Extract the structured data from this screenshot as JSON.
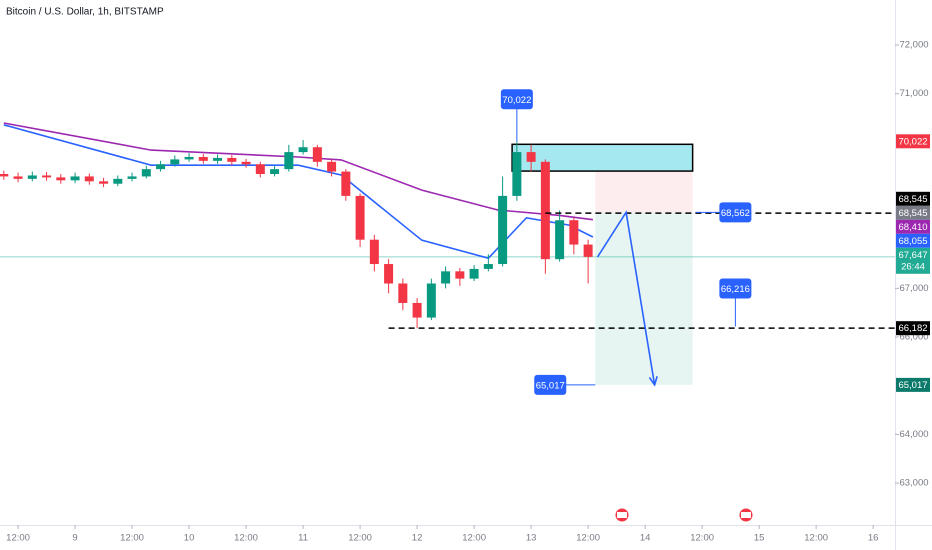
{
  "chart_data": {
    "type": "candlestick",
    "title": "Bitcoin / U.S. Dollar, 1h, BITSTAMP",
    "up_color": "#089981",
    "down_color": "#f23645",
    "xlim": [
      -3.8,
      184.6
    ],
    "ylim": [
      62138,
      72925
    ],
    "xticks": [
      {
        "value": 0,
        "label": "12:00"
      },
      {
        "value": 12,
        "label": "9"
      },
      {
        "value": 24,
        "label": "12:00"
      },
      {
        "value": 36,
        "label": "10"
      },
      {
        "value": 48,
        "label": "12:00"
      },
      {
        "value": 60,
        "label": "11"
      },
      {
        "value": 72,
        "label": "12:00"
      },
      {
        "value": 84,
        "label": "12"
      },
      {
        "value": 96,
        "label": "12:00"
      },
      {
        "value": 108,
        "label": "13"
      },
      {
        "value": 120,
        "label": "12:00"
      },
      {
        "value": 132,
        "label": "14"
      },
      {
        "value": 144,
        "label": "12:00"
      },
      {
        "value": 156,
        "label": "15"
      },
      {
        "value": 168,
        "label": "12:00"
      },
      {
        "value": 180,
        "label": "16"
      }
    ],
    "yticks": [
      {
        "value": 72000,
        "label": "72,000"
      },
      {
        "value": 71000,
        "label": "71,000"
      },
      {
        "value": 67000,
        "label": "67,000"
      },
      {
        "value": 66000,
        "label": "66,000"
      },
      {
        "value": 64000,
        "label": "64,000"
      },
      {
        "value": 63000,
        "label": "63,000"
      }
    ],
    "x": [
      -3,
      0,
      3,
      6,
      9,
      12,
      15,
      18,
      21,
      24,
      27,
      30,
      33,
      36,
      39,
      42,
      45,
      48,
      51,
      54,
      57,
      60,
      63,
      66,
      69,
      72,
      75,
      78,
      81,
      84,
      87,
      90,
      93,
      96,
      99,
      102,
      105,
      108,
      111,
      114,
      117,
      120
    ],
    "open": [
      69350,
      69300,
      69250,
      69320,
      69280,
      69220,
      69300,
      69200,
      69150,
      69250,
      69300,
      69450,
      69550,
      69650,
      69700,
      69620,
      69680,
      69600,
      69550,
      69350,
      69450,
      69800,
      69900,
      69600,
      69400,
      68900,
      68000,
      67500,
      67100,
      66700,
      66400,
      67100,
      67350,
      67200,
      67400,
      67500,
      68900,
      69800,
      69600,
      67600,
      68400,
      67900
    ],
    "high": [
      69420,
      69380,
      69400,
      69390,
      69350,
      69380,
      69360,
      69270,
      69320,
      69380,
      69520,
      69620,
      69730,
      69780,
      69760,
      69750,
      69740,
      69660,
      69600,
      69520,
      69950,
      70050,
      69950,
      69650,
      69450,
      68950,
      68100,
      67600,
      67200,
      66800,
      67200,
      67450,
      67420,
      67480,
      67700,
      69300,
      70022,
      69950,
      69650,
      68600,
      68450,
      68000
    ],
    "low": [
      69230,
      69180,
      69200,
      69210,
      69150,
      69160,
      69130,
      69080,
      69100,
      69200,
      69260,
      69400,
      69500,
      69600,
      69560,
      69560,
      69530,
      69480,
      69280,
      69300,
      69400,
      69750,
      69500,
      69300,
      68800,
      67850,
      67350,
      66900,
      66550,
      66182,
      66350,
      67000,
      67050,
      67150,
      67350,
      67450,
      68800,
      69400,
      67300,
      67550,
      67700,
      67100
    ],
    "close": [
      69300,
      69250,
      69320,
      69280,
      69220,
      69300,
      69200,
      69150,
      69250,
      69300,
      69450,
      69550,
      69650,
      69700,
      69620,
      69680,
      69600,
      69550,
      69350,
      69450,
      69800,
      69900,
      69600,
      69400,
      68900,
      68000,
      67500,
      67100,
      66700,
      66400,
      67100,
      67350,
      67200,
      67400,
      67500,
      68900,
      69800,
      69600,
      67600,
      68400,
      67900,
      67647
    ],
    "lines": [
      {
        "color": "#9c27b0",
        "x": [
          -3,
          28,
          59,
          68,
          85,
          101,
          114,
          121
        ],
        "values": [
          70397,
          69840,
          69700,
          69640,
          69020,
          68610,
          68500,
          68410
        ]
      },
      {
        "color": "#2962ff",
        "x": [
          -3,
          28,
          59,
          68,
          85,
          99,
          107,
          116,
          121
        ],
        "values": [
          70360,
          69530,
          69530,
          69330,
          67990,
          67620,
          68450,
          68300,
          68055
        ]
      }
    ],
    "current_price": {
      "value": 67647,
      "color": "#22ab94"
    },
    "zone": {
      "x": [
        104,
        142
      ],
      "values": [
        69410,
        69960
      ]
    },
    "position": {
      "x": [
        121.5,
        142
      ],
      "entry": 68562,
      "stop": 69410,
      "target": 65017
    },
    "projection": {
      "x": [
        122,
        128,
        134
      ],
      "values": [
        67647,
        68562,
        65017
      ]
    },
    "dashed_lines": [
      {
        "x": [
          111,
          184.6
        ],
        "value": 68545
      },
      {
        "x": [
          78,
          184.6
        ],
        "value": 66182
      }
    ],
    "callouts": [
      {
        "x": 105,
        "value": 70022,
        "label": "70,022"
      },
      {
        "x": 151,
        "value": 68562,
        "label": "68,562"
      },
      {
        "x": 151,
        "value": 66216,
        "label": "66,216"
      },
      {
        "x": 121.5,
        "value": 65017,
        "label": "65,017"
      }
    ],
    "price_labels": [
      {
        "value": 70022,
        "label": "70,022",
        "color": "#f23645"
      },
      {
        "value": 68545,
        "label": "68,545",
        "color": "#000000"
      },
      {
        "value": 68545,
        "label": "68,545",
        "color": "#787b86"
      },
      {
        "value": 68410,
        "label": "68,410",
        "color": "#9c27b0"
      },
      {
        "value": 68055,
        "label": "68,055",
        "color": "#2962ff"
      },
      {
        "value": 67647,
        "label": "67,647",
        "color": "#22ab94",
        "countdown": "26:44"
      },
      {
        "value": 66182,
        "label": "66,182",
        "color": "#000000"
      },
      {
        "value": 65017,
        "label": "65,017",
        "color": "#0b7a6a"
      }
    ]
  }
}
